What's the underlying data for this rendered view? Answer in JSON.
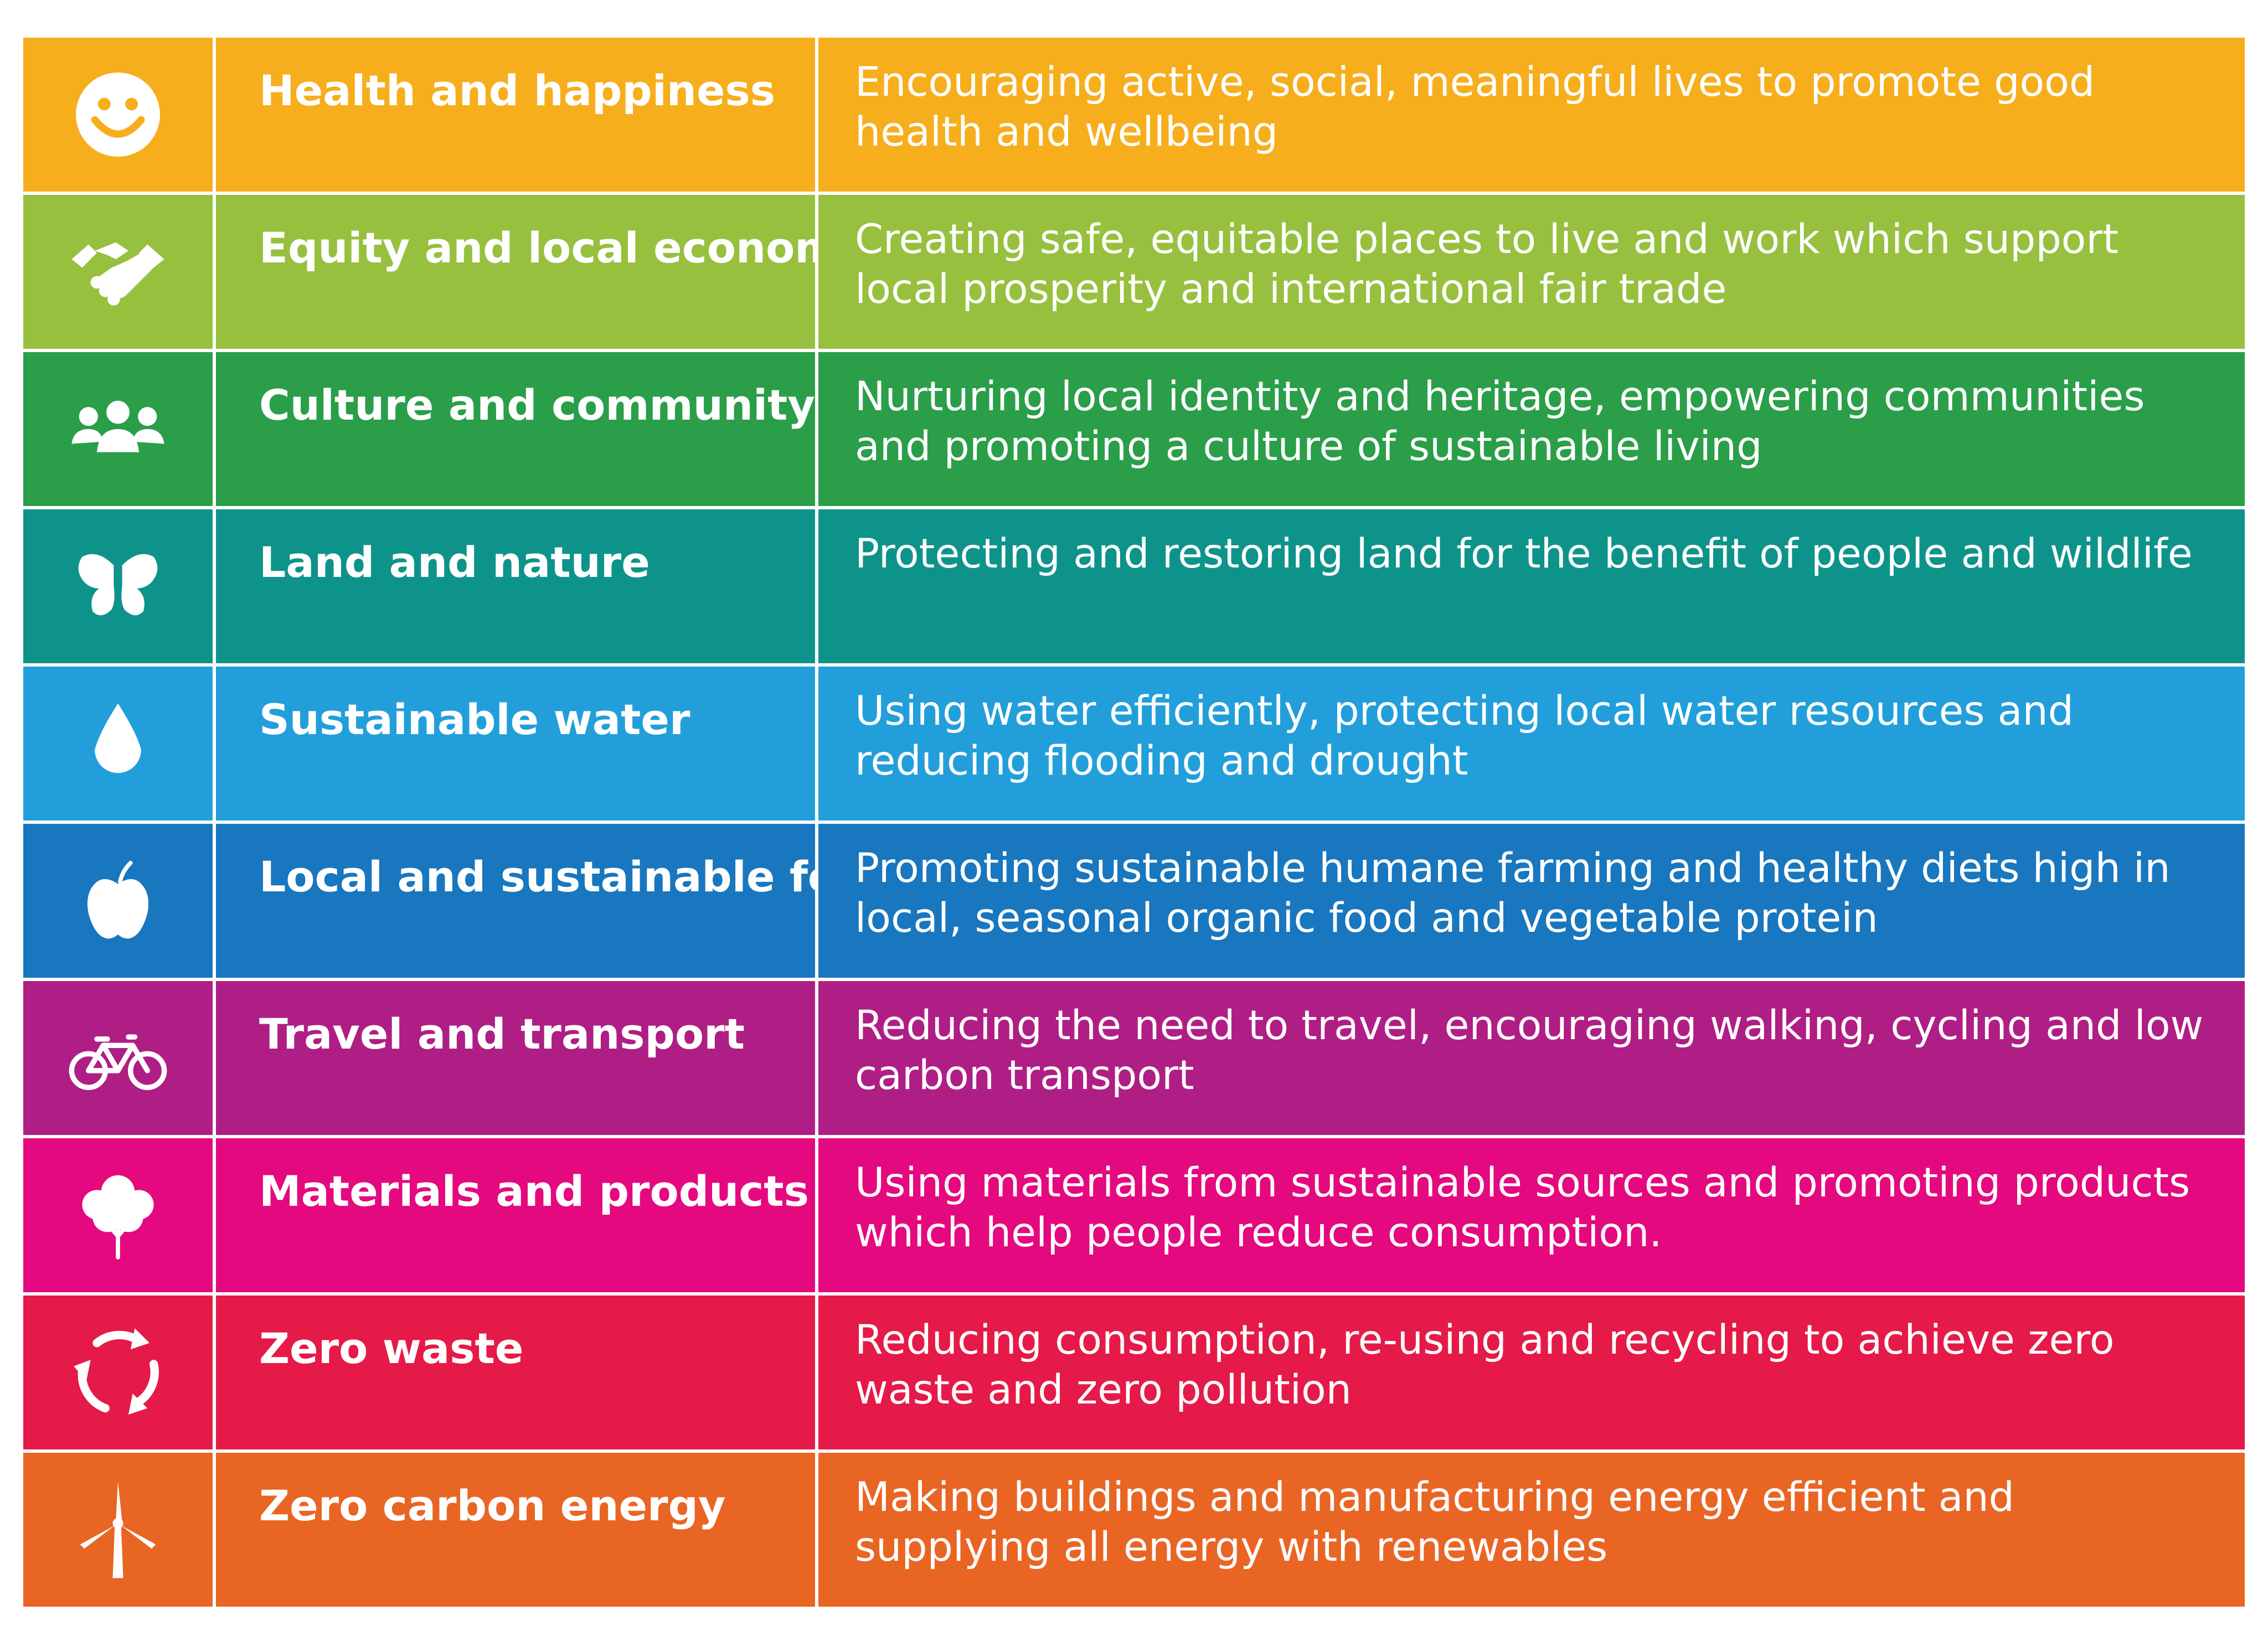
{
  "principles": [
    {
      "icon": "smiley-icon",
      "color": "#F7AE1D",
      "name": "Health and happiness",
      "description": "Encouraging active, social, meaningful lives to promote good health and wellbeing"
    },
    {
      "icon": "handshake-icon",
      "color": "#97C03F",
      "name": "Equity and local economy",
      "description": "Creating safe, equitable places to live and work which support local prosperity and international fair trade"
    },
    {
      "icon": "people-icon",
      "color": "#2A9E49",
      "name": "Culture and community",
      "description": "Nurturing local identity and heritage, empowering communities and promoting a culture of sustainable living"
    },
    {
      "icon": "butterfly-icon",
      "color": "#0E938B",
      "name": "Land and nature",
      "description": "Protecting and restoring land for the benefit of people and wildlife"
    },
    {
      "icon": "water-drop-icon",
      "color": "#229FDB",
      "name": "Sustainable water",
      "description": "Using water efficiently, protecting local water resources and reducing flooding and drought"
    },
    {
      "icon": "apple-icon",
      "color": "#1877BE",
      "name": "Local and sustainable food",
      "description": "Promoting sustainable humane farming and healthy diets high in local, seasonal organic food and vegetable protein"
    },
    {
      "icon": "bicycle-icon",
      "color": "#AF1E85",
      "name": "Travel and transport",
      "description": "Reducing the need to travel, encouraging walking, cycling and low carbon transport"
    },
    {
      "icon": "tree-icon",
      "color": "#E5097F",
      "name": "Materials and products",
      "description": "Using materials from sustainable sources and promoting products which help people reduce consumption."
    },
    {
      "icon": "recycle-icon",
      "color": "#E51A48",
      "name": "Zero waste",
      "description": "Reducing consumption, re-using and recycling to achieve zero waste and zero pollution"
    },
    {
      "icon": "wind-turbine-icon",
      "color": "#E96524",
      "name": "Zero carbon energy",
      "description": "Making buildings and manufacturing energy efficient and supplying all energy with renewables"
    }
  ]
}
